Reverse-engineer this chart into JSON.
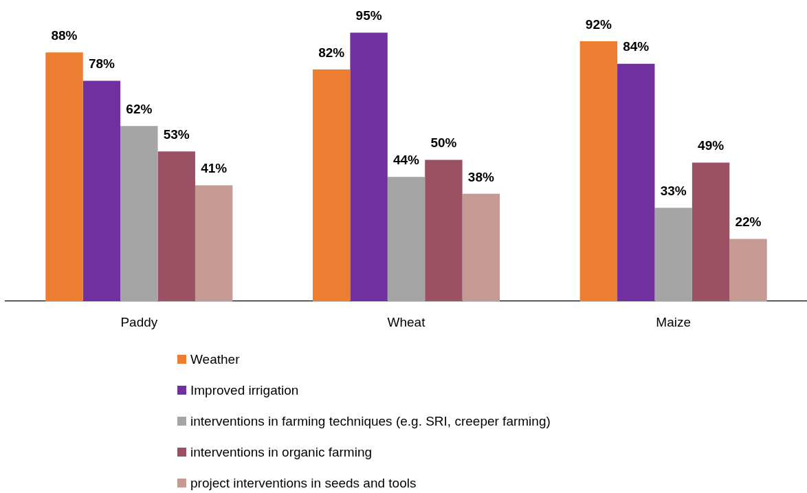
{
  "chart_data": {
    "type": "bar",
    "categories": [
      "Paddy",
      "Wheat",
      "Maize"
    ],
    "series": [
      {
        "name": "Weather",
        "color": "#ed7d31",
        "values": [
          88,
          82,
          92
        ],
        "value_labels": [
          "88%",
          "82%",
          "92%"
        ]
      },
      {
        "name": "Improved irrigation",
        "color": "#7030a0",
        "values": [
          78,
          95,
          84
        ],
        "value_labels": [
          "78%",
          "95%",
          "84%"
        ]
      },
      {
        "name": "interventions in farming techniques (e.g. SRI, creeper farming)",
        "color": "#a5a5a5",
        "values": [
          62,
          44,
          33
        ],
        "value_labels": [
          "62%",
          "44%",
          "33%"
        ]
      },
      {
        "name": "interventions in organic farming",
        "color": "#9b5163",
        "values": [
          53,
          50,
          49
        ],
        "value_labels": [
          "53%",
          "50%",
          "49%"
        ]
      },
      {
        "name": "project interventions in seeds and tools",
        "color": "#c49a93",
        "values": [
          41,
          38,
          22
        ],
        "value_labels": [
          "41%",
          "38%",
          "22%"
        ]
      }
    ],
    "legend": "bottom",
    "tick_labels": "x"
  }
}
